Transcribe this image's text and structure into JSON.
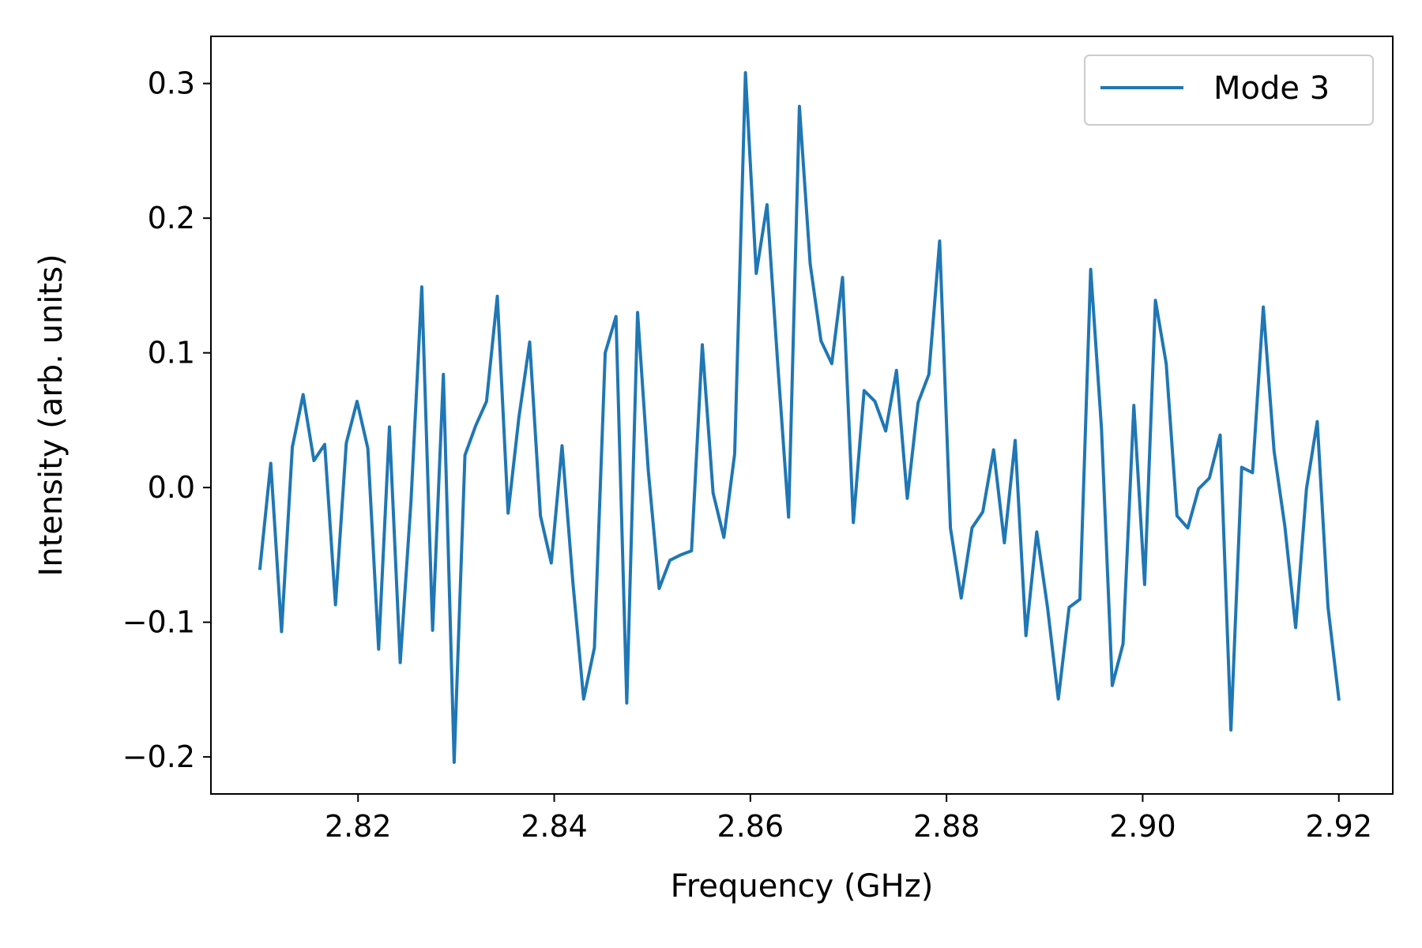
{
  "chart_data": {
    "type": "line",
    "title": "",
    "xlabel": "Frequency (GHz)",
    "ylabel": "Intensity (arb. units)",
    "xlim": [
      2.805,
      2.9255
    ],
    "ylim": [
      -0.2275,
      0.335
    ],
    "x_ticks": [
      2.82,
      2.84,
      2.86,
      2.88,
      2.9,
      2.92
    ],
    "x_tick_labels": [
      "2.82",
      "2.84",
      "2.86",
      "2.88",
      "2.90",
      "2.92"
    ],
    "y_ticks": [
      -0.2,
      -0.1,
      0.0,
      0.1,
      0.2,
      0.3
    ],
    "y_tick_labels": [
      "−0.2",
      "−0.1",
      "0.0",
      "0.1",
      "0.2",
      "0.3"
    ],
    "grid": false,
    "legend": {
      "position": "upper right"
    },
    "series": [
      {
        "name": "Mode 3",
        "color": "#1f77b4",
        "x_start": 2.81,
        "x_end": 2.92,
        "y": [
          -0.06,
          0.018,
          -0.107,
          0.03,
          0.069,
          0.02,
          0.032,
          -0.087,
          0.033,
          0.064,
          0.029,
          -0.12,
          0.045,
          -0.13,
          -0.01,
          0.149,
          -0.106,
          0.084,
          -0.204,
          0.024,
          0.046,
          0.064,
          0.142,
          -0.019,
          0.052,
          0.108,
          -0.021,
          -0.056,
          0.031,
          -0.07,
          -0.157,
          -0.119,
          0.1,
          0.127,
          -0.16,
          0.13,
          0.012,
          -0.075,
          -0.054,
          -0.05,
          -0.047,
          0.106,
          -0.004,
          -0.037,
          0.025,
          0.308,
          0.159,
          0.21,
          0.091,
          -0.022,
          0.283,
          0.166,
          0.109,
          0.092,
          0.156,
          -0.026,
          0.072,
          0.064,
          0.042,
          0.087,
          -0.008,
          0.063,
          0.084,
          0.183,
          -0.03,
          -0.082,
          -0.03,
          -0.018,
          0.028,
          -0.041,
          0.035,
          -0.11,
          -0.033,
          -0.089,
          -0.157,
          -0.089,
          -0.083,
          0.162,
          0.044,
          -0.147,
          -0.116,
          0.061,
          -0.072,
          0.139,
          0.092,
          -0.021,
          -0.03,
          -0.001,
          0.007,
          0.039,
          -0.18,
          0.015,
          0.011,
          0.134,
          0.027,
          -0.029,
          -0.104,
          -0.001,
          0.049,
          -0.089,
          -0.157
        ]
      }
    ]
  }
}
